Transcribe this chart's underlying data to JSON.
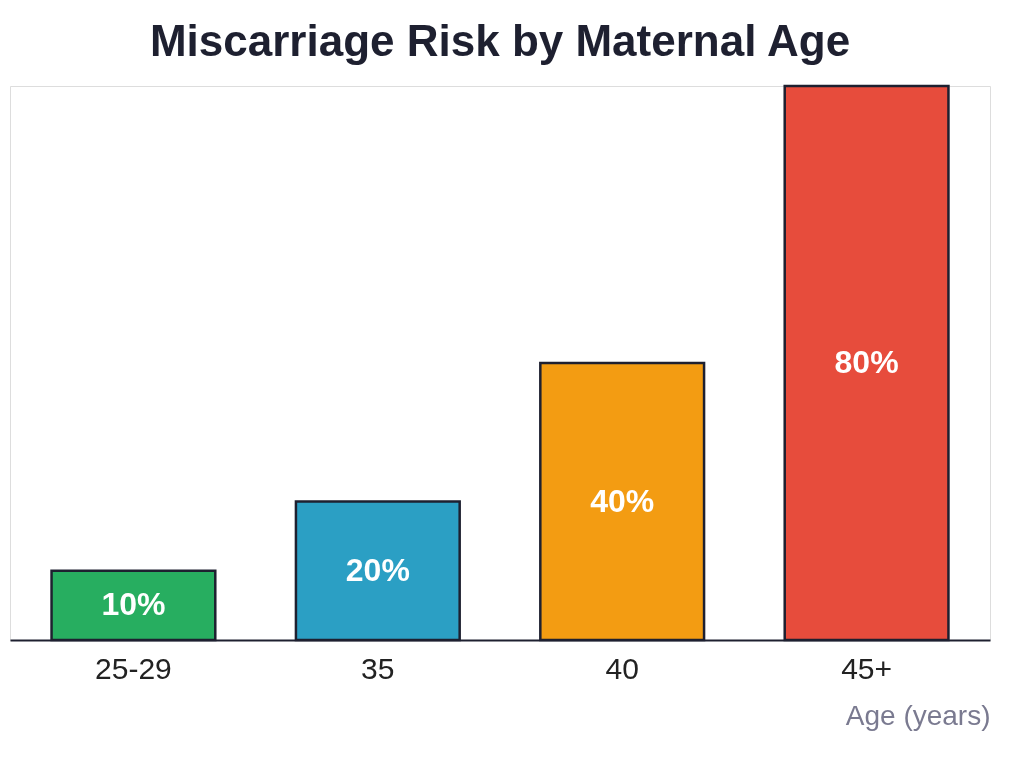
{
  "chart_data": {
    "type": "bar",
    "title": "Miscarriage Risk by Maternal Age",
    "xlabel": "Age (years)",
    "categories": [
      "25-29",
      "35",
      "40",
      "45+"
    ],
    "values": [
      10,
      20,
      40,
      80
    ],
    "colors": [
      "#27ae60",
      "#2b9fc4",
      "#f39c12",
      "#e74c3c"
    ],
    "value_labels": [
      "10%",
      "20%",
      "40%",
      "80%"
    ],
    "grid": false
  }
}
